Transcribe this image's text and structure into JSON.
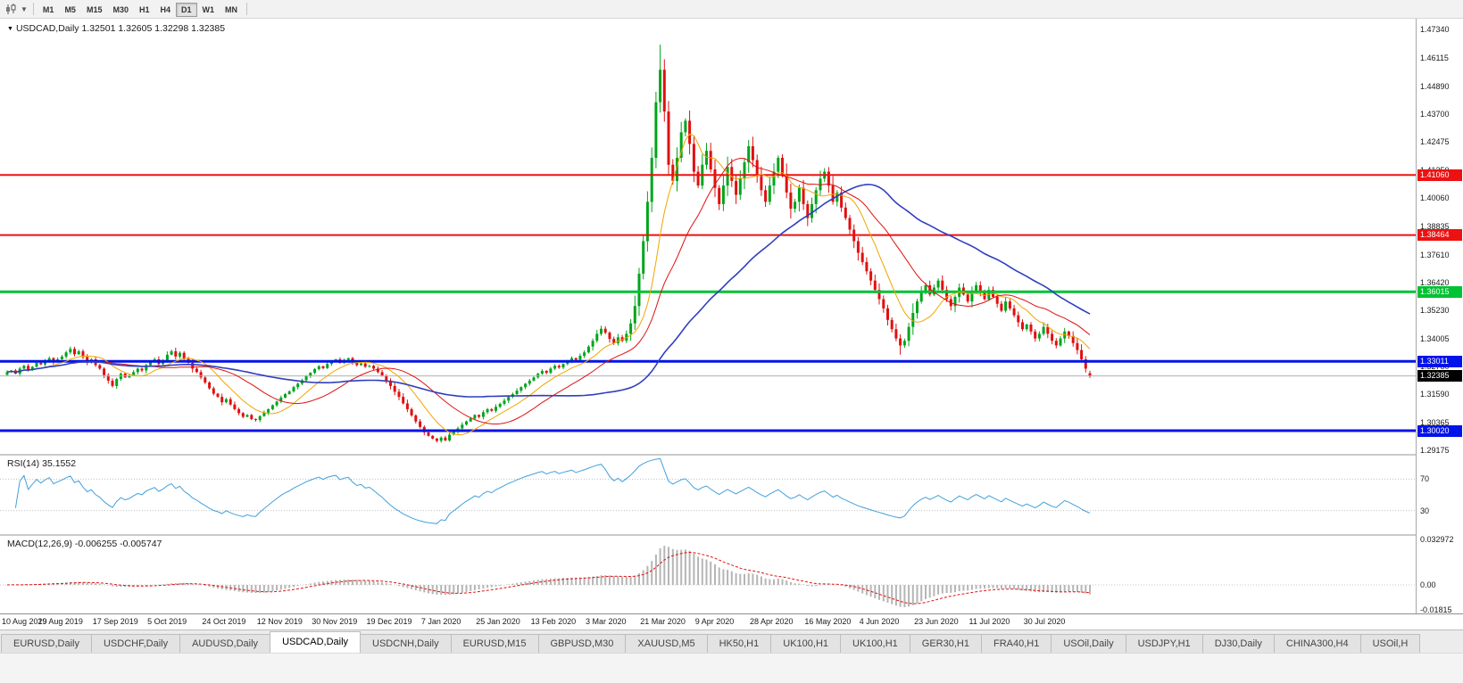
{
  "toolbar": {
    "timeframes": [
      "M1",
      "M5",
      "M15",
      "M30",
      "H1",
      "H4",
      "D1",
      "W1",
      "MN"
    ],
    "active_timeframe": "D1"
  },
  "symbol_header": {
    "symbol": "USDCAD,Daily",
    "open": "1.32501",
    "high": "1.32605",
    "low": "1.32298",
    "close": "1.32385"
  },
  "indicators": {
    "rsi": {
      "label": "RSI(14)",
      "value": "35.1552",
      "levels": [
        "70",
        "30"
      ],
      "level_values": [
        70,
        30
      ]
    },
    "macd": {
      "label": "MACD(12,26,9)",
      "value": "-0.006255",
      "signal_value": "-0.005747",
      "axis_labels": [
        "0.032972",
        "0.00",
        "-0.01815"
      ],
      "scale_max": 0.032972,
      "scale_min": -0.01815
    }
  },
  "tabs": {
    "items": [
      "EURUSD,Daily",
      "USDCHF,Daily",
      "AUDUSD,Daily",
      "USDCAD,Daily",
      "USDCNH,Daily",
      "EURUSD,M15",
      "GBPUSD,M30",
      "XAUUSD,M5",
      "HK50,H1",
      "UK100,H1",
      "UK100,H1",
      "GER30,H1",
      "FRA40,H1",
      "USOil,Daily",
      "USDJPY,H1",
      "DJ30,Daily",
      "CHINA300,H4",
      "USOil,H"
    ],
    "active": "USDCAD,Daily"
  },
  "chart_data": {
    "type": "candlestick",
    "symbol": "USDCAD",
    "timeframe": "Daily",
    "price_axis": {
      "top_price": 1.4734,
      "bottom_price": 1.29175,
      "labels": [
        "1.47340",
        "1.46115",
        "1.44890",
        "1.43700",
        "1.42475",
        "1.41250",
        "1.40060",
        "1.38835",
        "1.37610",
        "1.36420",
        "1.35230",
        "1.34005",
        "1.32780",
        "1.31590",
        "1.30365",
        "1.29175"
      ]
    },
    "dates": {
      "step": 13,
      "labels": [
        "10 Aug 2019",
        "29 Aug 2019",
        "17 Sep 2019",
        "5 Oct 2019",
        "24 Oct 2019",
        "12 Nov 2019",
        "30 Nov 2019",
        "19 Dec 2019",
        "7 Jan 2020",
        "25 Jan 2020",
        "13 Feb 2020",
        "3 Mar 2020",
        "21 Mar 2020",
        "9 Apr 2020",
        "28 Apr 2020",
        "16 May 2020",
        "4 Jun 2020",
        "23 Jun 2020",
        "11 Jul 2020",
        "30 Jul 2020"
      ]
    },
    "closes": [
      1.3255,
      1.3262,
      1.3248,
      1.327,
      1.3282,
      1.3265,
      1.3278,
      1.3295,
      1.3288,
      1.3302,
      1.3315,
      1.3298,
      1.331,
      1.3322,
      1.334,
      1.3355,
      1.3332,
      1.3345,
      1.332,
      1.3298,
      1.331,
      1.3285,
      1.327,
      1.3242,
      1.3218,
      1.3195,
      1.3225,
      1.3248,
      1.3232,
      1.324,
      1.3255,
      1.327,
      1.3262,
      1.3285,
      1.3298,
      1.331,
      1.329,
      1.3305,
      1.333,
      1.3345,
      1.3322,
      1.3338,
      1.3312,
      1.3295,
      1.327,
      1.3255,
      1.3232,
      1.321,
      1.3185,
      1.3162,
      1.3148,
      1.3125,
      1.3138,
      1.3115,
      1.3095,
      1.3078,
      1.3062,
      1.307,
      1.3052,
      1.3048,
      1.3065,
      1.308,
      1.3095,
      1.3112,
      1.3128,
      1.3145,
      1.316,
      1.3172,
      1.319,
      1.3205,
      1.322,
      1.3238,
      1.3252,
      1.3268,
      1.328,
      1.3272,
      1.329,
      1.3302,
      1.331,
      1.3295,
      1.3308,
      1.3315,
      1.3298,
      1.3285,
      1.3292,
      1.3278,
      1.3282,
      1.327,
      1.3255,
      1.324,
      1.3218,
      1.3195,
      1.317,
      1.3148,
      1.312,
      1.3095,
      1.3068,
      1.3042,
      1.3018,
      1.2995,
      1.298,
      1.2968,
      1.2958,
      1.2972,
      1.296,
      1.2985,
      1.2998,
      1.3012,
      1.3028,
      1.3042,
      1.3055,
      1.307,
      1.3062,
      1.3082,
      1.3095,
      1.3088,
      1.3105,
      1.3118,
      1.3132,
      1.3148,
      1.316,
      1.3175,
      1.319,
      1.3205,
      1.3218,
      1.3232,
      1.3248,
      1.326,
      1.3252,
      1.327,
      1.3282,
      1.3275,
      1.329,
      1.3302,
      1.3315,
      1.3308,
      1.3325,
      1.334,
      1.3365,
      1.339,
      1.342,
      1.3442,
      1.3425,
      1.3398,
      1.338,
      1.3405,
      1.339,
      1.342,
      1.3465,
      1.354,
      1.368,
      1.382,
      1.399,
      1.418,
      1.442,
      1.456,
      1.438,
      1.415,
      1.408,
      1.418,
      1.429,
      1.434,
      1.424,
      1.412,
      1.406,
      1.415,
      1.421,
      1.413,
      1.405,
      1.398,
      1.406,
      1.414,
      1.408,
      1.402,
      1.409,
      1.416,
      1.423,
      1.417,
      1.41,
      1.404,
      1.399,
      1.406,
      1.412,
      1.418,
      1.411,
      1.403,
      1.396,
      1.399,
      1.405,
      1.398,
      1.392,
      1.398,
      1.404,
      1.409,
      1.412,
      1.406,
      1.399,
      1.403,
      1.3965,
      1.392,
      1.387,
      1.382,
      1.377,
      1.373,
      1.369,
      1.365,
      1.361,
      1.357,
      1.353,
      1.348,
      1.344,
      1.34,
      1.337,
      1.339,
      1.345,
      1.351,
      1.356,
      1.36,
      1.363,
      1.359,
      1.362,
      1.365,
      1.361,
      1.357,
      1.354,
      1.358,
      1.362,
      1.359,
      1.356,
      1.36,
      1.363,
      1.36,
      1.357,
      1.361,
      1.358,
      1.355,
      1.352,
      1.356,
      1.353,
      1.35,
      1.347,
      1.344,
      1.346,
      1.343,
      1.34,
      1.342,
      1.345,
      1.342,
      1.339,
      1.337,
      1.34,
      1.343,
      1.341,
      1.338,
      1.335,
      1.331,
      1.327,
      1.32385
    ],
    "overrides": {
      "102": {
        "low": 1.2951
      },
      "155": {
        "high": 1.4668
      },
      "212": {
        "low": 1.333
      },
      "257": {
        "open": 1.32501,
        "high": 1.32605,
        "low": 1.32298,
        "close": 1.32385
      }
    },
    "hlines": [
      {
        "price": 1.4106,
        "label": "1.41060",
        "color": "#ee1111",
        "width": 2
      },
      {
        "price": 1.38464,
        "label": "1.38464",
        "color": "#ee1111",
        "width": 2
      },
      {
        "price": 1.36015,
        "label": "1.36015",
        "color": "#00c232",
        "width": 3
      },
      {
        "price": 1.33011,
        "label": "1.33011",
        "color": "#0013e8",
        "width": 3
      },
      {
        "price": 1.3002,
        "label": "1.30020",
        "color": "#0013e8",
        "width": 3
      }
    ],
    "current_price": {
      "value": 1.32385,
      "label": "1.32385"
    },
    "moving_averages": [
      {
        "period": 10,
        "color": "#f0a500",
        "width": 1
      },
      {
        "period": 22,
        "color": "#e01010",
        "width": 1
      },
      {
        "period": 55,
        "color": "#2f3fbe",
        "width": 1.6
      }
    ],
    "colors": {
      "up": "#00a51b",
      "down": "#e01010",
      "rsi_line": "#42a0dc",
      "rsi_level": "#c0c0c0",
      "macd_hist": "#b5b5b5",
      "macd_signal": "#e01010",
      "current_line": "#b0b0b0"
    }
  }
}
